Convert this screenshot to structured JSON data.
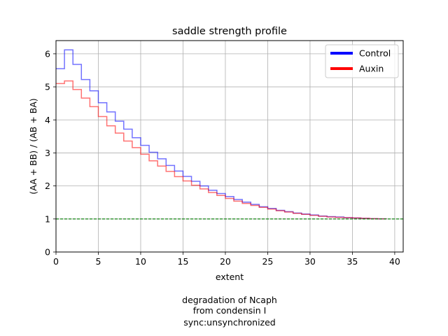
{
  "chart_data": {
    "type": "line",
    "title": "saddle strength profile",
    "xlabel": "extent",
    "ylabel": "(AA + BB) / (AB + BA)",
    "xlim": [
      0,
      41
    ],
    "ylim": [
      0,
      6.4
    ],
    "xticks": [
      0,
      5,
      10,
      15,
      20,
      25,
      30,
      35,
      40
    ],
    "yticks": [
      0,
      1,
      2,
      3,
      4,
      5,
      6
    ],
    "grid": true,
    "legend_position": "top-right",
    "step": true,
    "x": [
      0,
      1,
      2,
      3,
      4,
      5,
      6,
      7,
      8,
      9,
      10,
      11,
      12,
      13,
      14,
      15,
      16,
      17,
      18,
      19,
      20,
      21,
      22,
      23,
      24,
      25,
      26,
      27,
      28,
      29,
      30,
      31,
      32,
      33,
      34,
      35,
      36,
      37,
      38,
      39
    ],
    "series": [
      {
        "name": "Control",
        "color": "#0000ff",
        "values": [
          5.55,
          6.12,
          5.68,
          5.22,
          4.88,
          4.52,
          4.24,
          3.96,
          3.72,
          3.46,
          3.23,
          3.02,
          2.82,
          2.62,
          2.45,
          2.29,
          2.14,
          2.0,
          1.87,
          1.77,
          1.68,
          1.59,
          1.51,
          1.44,
          1.37,
          1.32,
          1.26,
          1.22,
          1.18,
          1.15,
          1.12,
          1.09,
          1.07,
          1.06,
          1.04,
          1.03,
          1.02,
          1.01,
          1.005,
          1.0
        ]
      },
      {
        "name": "Auxin",
        "color": "#ff0000",
        "values": [
          5.1,
          5.18,
          4.92,
          4.66,
          4.4,
          4.1,
          3.82,
          3.6,
          3.36,
          3.16,
          2.96,
          2.76,
          2.6,
          2.44,
          2.28,
          2.15,
          2.02,
          1.91,
          1.8,
          1.71,
          1.62,
          1.54,
          1.47,
          1.41,
          1.35,
          1.3,
          1.25,
          1.21,
          1.17,
          1.14,
          1.11,
          1.08,
          1.06,
          1.05,
          1.04,
          1.03,
          1.02,
          1.01,
          1.005,
          1.0
        ]
      }
    ],
    "reference_line": {
      "y": 1,
      "color": "#008000",
      "style": "dashed"
    },
    "caption": [
      "degradation of Ncaph",
      "from condensin I",
      "sync:unsynchronized"
    ]
  }
}
